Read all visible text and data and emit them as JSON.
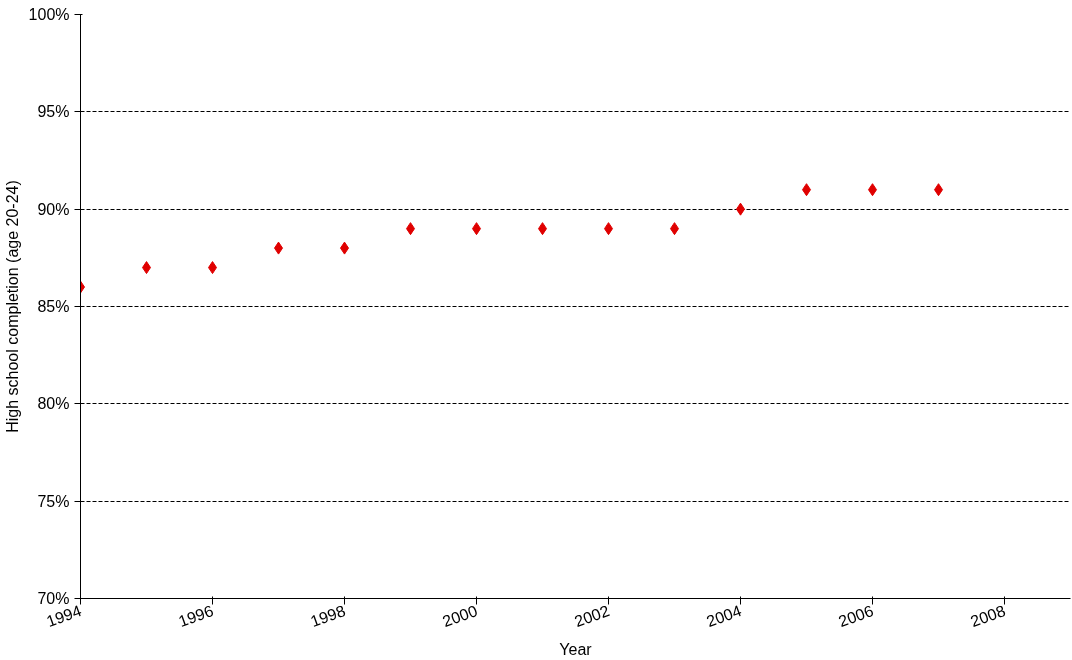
{
  "chart_data": {
    "type": "scatter",
    "xlabel": "Year",
    "ylabel": "High school completion (age 20-24)",
    "x": [
      1994,
      1995,
      1996,
      1997,
      1998,
      1999,
      2000,
      2001,
      2002,
      2003,
      2004,
      2005,
      2006,
      2007
    ],
    "series": [
      {
        "color": "#e00000",
        "values": [
          86,
          87,
          87,
          88,
          88,
          89,
          89,
          89,
          89,
          89,
          90,
          91,
          91,
          91
        ]
      }
    ],
    "xlim": [
      1994,
      2009
    ],
    "xticks": [
      1994,
      1996,
      1998,
      2000,
      2002,
      2004,
      2006,
      2008
    ],
    "ylim": [
      70,
      100
    ],
    "yticks": [
      {
        "value": 70,
        "label": "70%"
      },
      {
        "value": 75,
        "label": "75%"
      },
      {
        "value": 80,
        "label": "80%"
      },
      {
        "value": 85,
        "label": "85%"
      },
      {
        "value": 90,
        "label": "90%"
      },
      {
        "value": 95,
        "label": "95%"
      },
      {
        "value": 100,
        "label": "100%"
      }
    ],
    "grid": "y",
    "marker": "diamond"
  }
}
